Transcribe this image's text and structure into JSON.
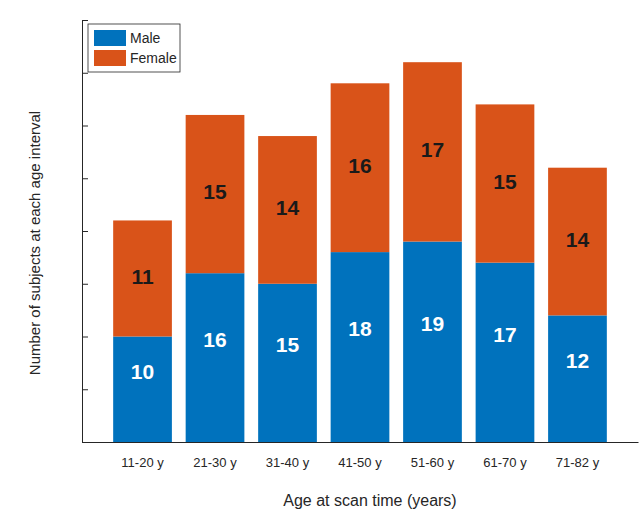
{
  "chart_data": {
    "type": "bar",
    "stacked": true,
    "data_labels": true,
    "legend": "top-left",
    "tick_labels": "x",
    "grid": false,
    "x_label": "Age at scan time (years)",
    "y_label": "Number of subjects at each age interval",
    "categories": [
      "11-20 y",
      "21-30 y",
      "31-40 y",
      "41-50 y",
      "51-60 y",
      "61-70 y",
      "71-82 y"
    ],
    "series": [
      {
        "name": "Male",
        "color": "#0072bd",
        "values": [
          10,
          16,
          15,
          18,
          19,
          17,
          12
        ]
      },
      {
        "name": "Female",
        "color": "#d95319",
        "values": [
          11,
          15,
          14,
          16,
          17,
          15,
          14
        ]
      }
    ],
    "ylim": [
      0,
      40
    ],
    "yticks": [
      0,
      5,
      10,
      15,
      20,
      25,
      30,
      35,
      40
    ]
  }
}
